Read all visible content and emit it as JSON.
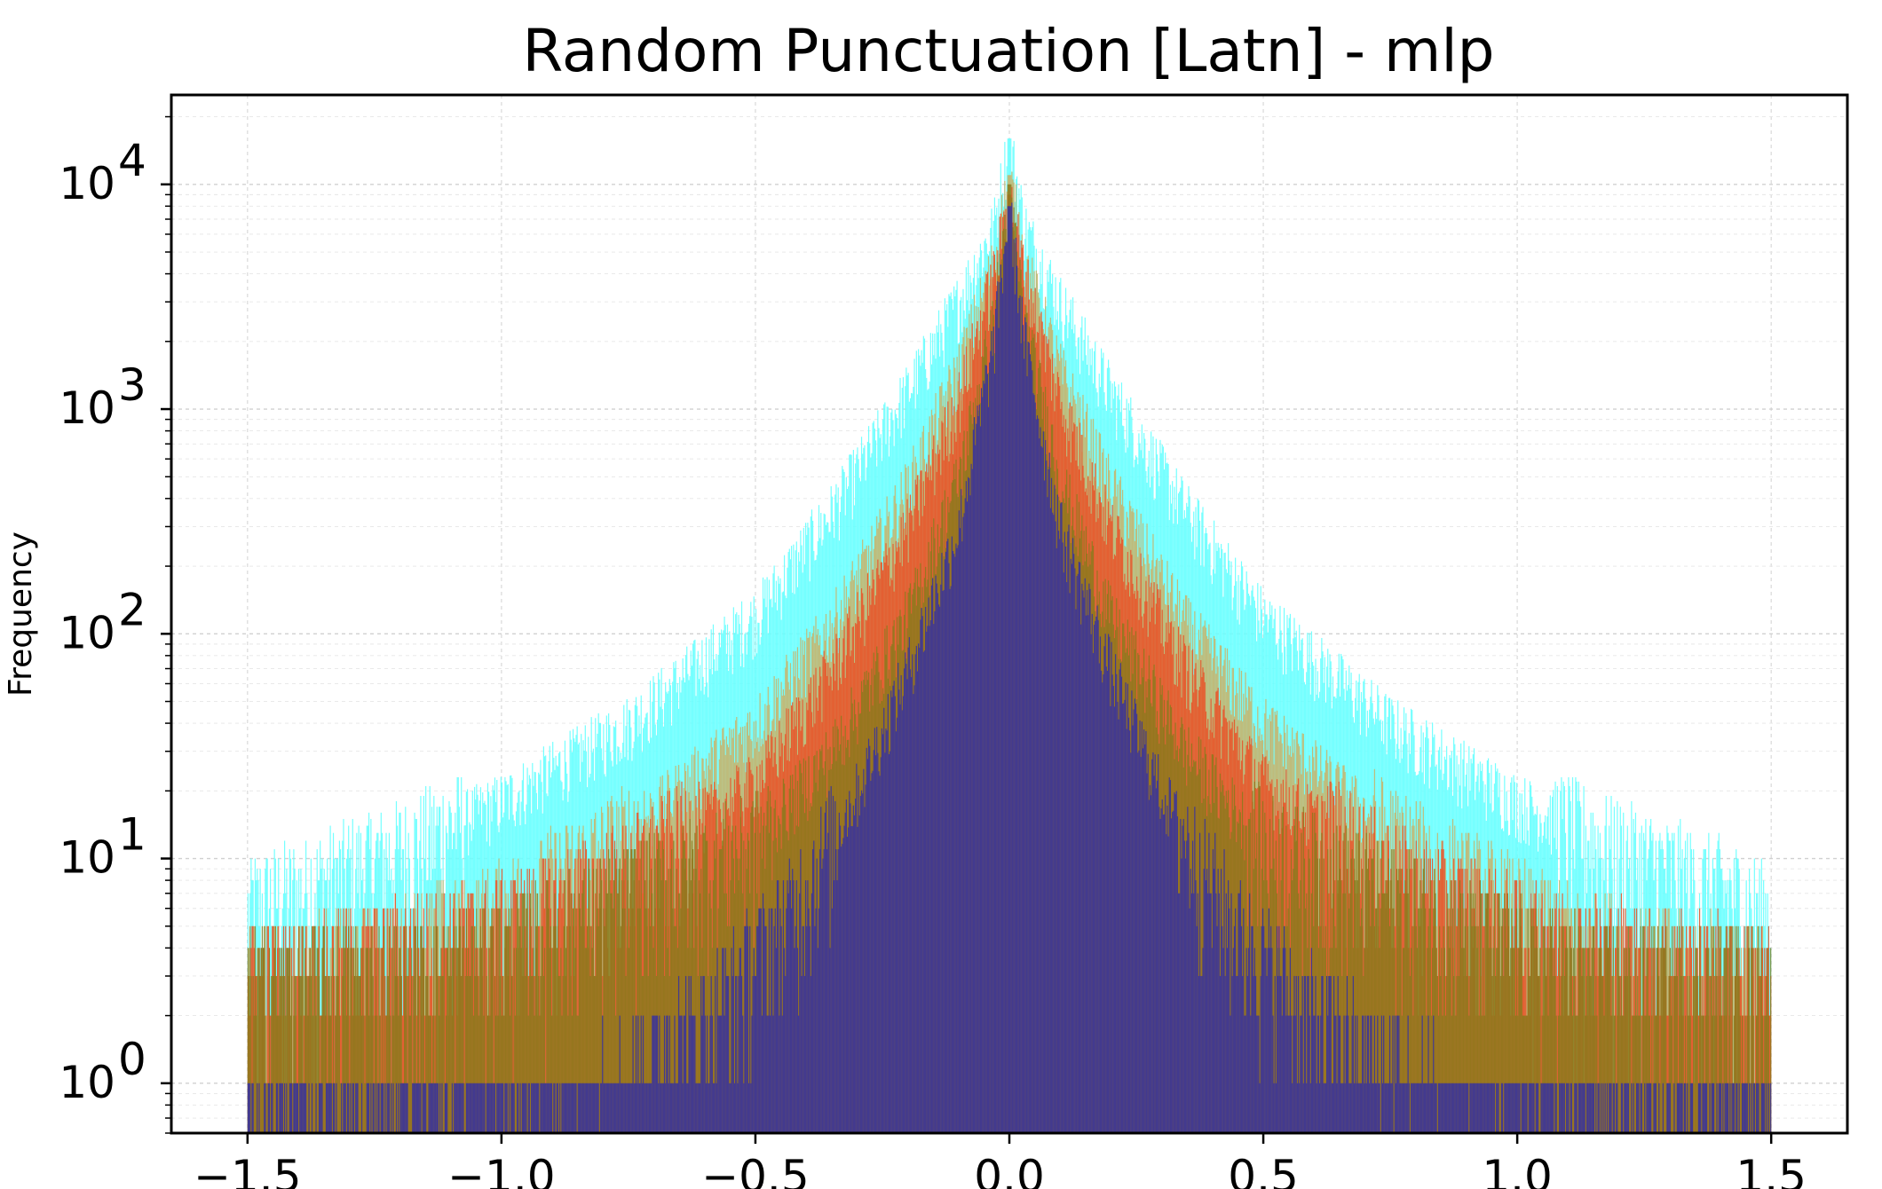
{
  "chart_data": {
    "type": "bar",
    "title": "Random Punctuation [Latn] - mlp",
    "xlabel": "",
    "ylabel": "Frequency",
    "yscale": "log",
    "xlim": [
      -1.65,
      1.65
    ],
    "ylim": [
      0.6,
      25000
    ],
    "x_ticks": [
      -1.5,
      -1.0,
      -0.5,
      0.0,
      0.5,
      1.0,
      1.5
    ],
    "x_tick_labels": [
      "−1.5",
      "−1.0",
      "−0.5",
      "0.0",
      "0.5",
      "1.0",
      "1.5"
    ],
    "y_ticks": [
      1,
      10,
      100,
      1000,
      10000
    ],
    "y_tick_labels": [
      {
        "base": "10",
        "exp": "0"
      },
      {
        "base": "10",
        "exp": "1"
      },
      {
        "base": "10",
        "exp": "2"
      },
      {
        "base": "10",
        "exp": "3"
      },
      {
        "base": "10",
        "exp": "4"
      }
    ],
    "grid": true,
    "bin_range": [
      -1.5,
      1.5
    ],
    "series": [
      {
        "name": "cyan",
        "color": "#66ffff",
        "opacity": 0.9,
        "peak": 16000,
        "bins": [
          [
            -1.5,
            6
          ],
          [
            -1.2,
            11
          ],
          [
            -1.0,
            18
          ],
          [
            -0.75,
            40
          ],
          [
            -0.5,
            120
          ],
          [
            -0.35,
            350
          ],
          [
            -0.2,
            1200
          ],
          [
            -0.1,
            3000
          ],
          [
            -0.03,
            6500
          ],
          [
            0.0,
            16000
          ],
          [
            0.03,
            6500
          ],
          [
            0.1,
            3000
          ],
          [
            0.2,
            1200
          ],
          [
            0.35,
            350
          ],
          [
            0.5,
            120
          ],
          [
            0.75,
            40
          ],
          [
            1.0,
            18
          ],
          [
            1.2,
            11
          ],
          [
            1.5,
            6
          ]
        ]
      },
      {
        "name": "khaki",
        "color": "#c7b56e",
        "opacity": 0.9,
        "peak": 11000,
        "bins": [
          [
            -1.5,
            3
          ],
          [
            -1.2,
            4
          ],
          [
            -1.0,
            6
          ],
          [
            -0.75,
            13
          ],
          [
            -0.5,
            40
          ],
          [
            -0.35,
            110
          ],
          [
            -0.2,
            450
          ],
          [
            -0.1,
            1500
          ],
          [
            -0.03,
            4500
          ],
          [
            0.0,
            11000
          ],
          [
            0.03,
            4500
          ],
          [
            0.1,
            1500
          ],
          [
            0.2,
            450
          ],
          [
            0.35,
            110
          ],
          [
            0.5,
            40
          ],
          [
            0.75,
            13
          ],
          [
            1.0,
            6
          ],
          [
            1.2,
            4
          ],
          [
            1.5,
            3
          ]
        ]
      },
      {
        "name": "orange-red",
        "color": "#e8552a",
        "opacity": 0.9,
        "peak": 9000,
        "bins": [
          [
            -1.5,
            3
          ],
          [
            -1.2,
            4
          ],
          [
            -1.0,
            5
          ],
          [
            -0.75,
            9
          ],
          [
            -0.5,
            22
          ],
          [
            -0.35,
            70
          ],
          [
            -0.2,
            300
          ],
          [
            -0.1,
            1100
          ],
          [
            -0.03,
            4000
          ],
          [
            0.0,
            9000
          ],
          [
            0.03,
            4000
          ],
          [
            0.1,
            1100
          ],
          [
            0.2,
            300
          ],
          [
            0.35,
            70
          ],
          [
            0.5,
            22
          ],
          [
            0.75,
            9
          ],
          [
            1.0,
            5
          ],
          [
            1.2,
            4
          ],
          [
            1.5,
            3
          ]
        ]
      },
      {
        "name": "olive",
        "color": "#8a7a1c",
        "opacity": 0.85,
        "peak": 10000,
        "bins": [
          [
            -1.5,
            3
          ],
          [
            -1.2,
            3
          ],
          [
            -1.0,
            4
          ],
          [
            -0.75,
            7
          ],
          [
            -0.5,
            12
          ],
          [
            -0.35,
            30
          ],
          [
            -0.2,
            120
          ],
          [
            -0.1,
            500
          ],
          [
            -0.03,
            2500
          ],
          [
            0.0,
            10000
          ],
          [
            0.03,
            2500
          ],
          [
            0.1,
            500
          ],
          [
            0.2,
            120
          ],
          [
            0.35,
            30
          ],
          [
            0.5,
            12
          ],
          [
            0.75,
            7
          ],
          [
            1.0,
            4
          ],
          [
            1.2,
            3
          ],
          [
            1.5,
            3
          ]
        ]
      },
      {
        "name": "indigo",
        "color": "#433a8f",
        "opacity": 1.0,
        "peak": 8000,
        "bins": [
          [
            -1.5,
            0.3
          ],
          [
            -1.2,
            0.4
          ],
          [
            -1.0,
            0.6
          ],
          [
            -0.75,
            1.2
          ],
          [
            -0.6,
            2
          ],
          [
            -0.45,
            5
          ],
          [
            -0.3,
            20
          ],
          [
            -0.2,
            70
          ],
          [
            -0.1,
            300
          ],
          [
            -0.03,
            2000
          ],
          [
            0.0,
            8000
          ],
          [
            0.03,
            2000
          ],
          [
            0.1,
            300
          ],
          [
            0.2,
            70
          ],
          [
            0.3,
            20
          ],
          [
            0.45,
            5
          ],
          [
            0.6,
            2
          ],
          [
            0.75,
            1.2
          ],
          [
            1.0,
            0.6
          ],
          [
            1.2,
            0.4
          ],
          [
            1.5,
            0.3
          ]
        ]
      }
    ]
  }
}
